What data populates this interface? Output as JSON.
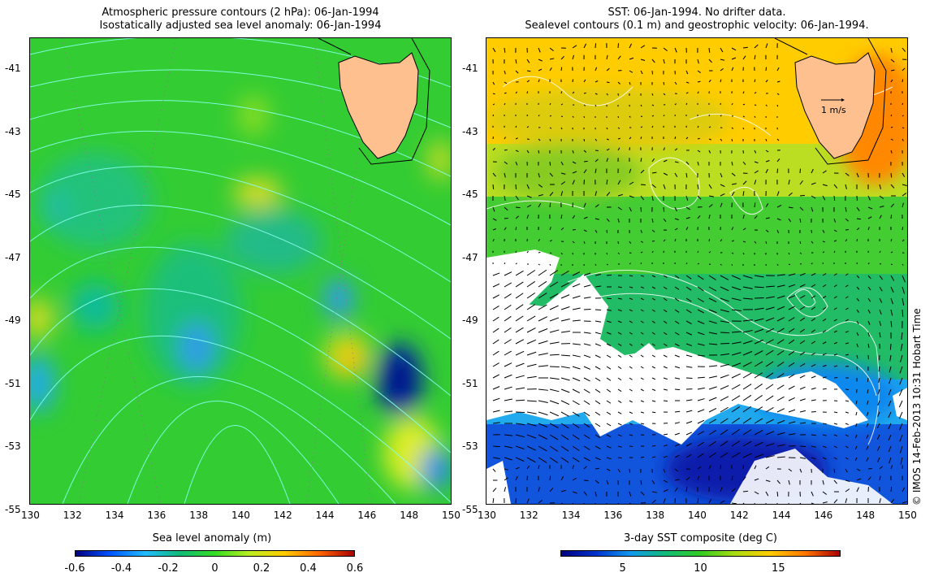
{
  "left_panel": {
    "title_line1": "Atmospheric pressure contours (2 hPa): 06-Jan-1994",
    "title_line2": "Isostatically adjusted sea level anomaly: 06-Jan-1994",
    "colorbar_title": "Sea level anomaly (m)",
    "colorbar_ticks": [
      "-0.6",
      "-0.4",
      "-0.2",
      "0",
      "0.2",
      "0.4",
      "0.6"
    ],
    "colors": [
      "#00007f",
      "#0055ff",
      "#22bbff",
      "#11bb77",
      "#33dd22",
      "#bbee22",
      "#ffcc00",
      "#ff6600",
      "#aa0000"
    ]
  },
  "right_panel": {
    "title_line1": "SST: 06-Jan-1994. No drifter data.",
    "title_line2": "Sealevel contours (0.1 m) and geostrophic velocity: 06-Jan-1994.",
    "colorbar_title": "3-day SST composite (deg C)",
    "colorbar_ticks": [
      "5",
      "10",
      "15"
    ],
    "velocity_scale_label": "1 m/s",
    "colors": [
      "#00007f",
      "#0033cc",
      "#1199ee",
      "#11bb77",
      "#33cc22",
      "#aadd11",
      "#ffcc00",
      "#ff7700",
      "#aa0000"
    ]
  },
  "axes": {
    "lat_labels": [
      "-41",
      "-43",
      "-45",
      "-47",
      "-49",
      "-51",
      "-53",
      "-55"
    ],
    "lon_labels": [
      "130",
      "132",
      "134",
      "136",
      "138",
      "140",
      "142",
      "144",
      "146",
      "148",
      "150"
    ]
  },
  "footer_text": "© IMOS 14-Feb-2013 10:31 Hobart Time",
  "land_color": "#ffc090"
}
